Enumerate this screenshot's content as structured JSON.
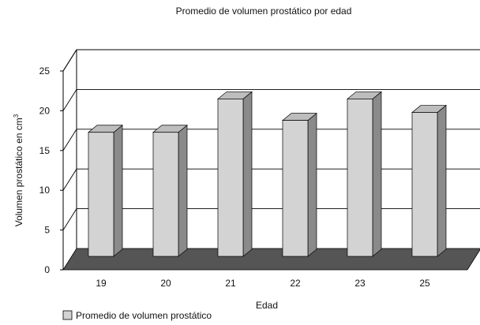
{
  "chart_data": {
    "type": "bar",
    "title": "Promedio de volumen prostático por edad",
    "xlabel": "Edad",
    "ylabel": "Volumen prostático en cm",
    "ylabel_superscript": "3",
    "categories": [
      "19",
      "20",
      "21",
      "22",
      "23",
      "25"
    ],
    "series": [
      {
        "name": "Promedio de volumen prostático",
        "values": [
          15.6,
          15.6,
          19.8,
          17.1,
          19.8,
          18.1
        ]
      }
    ],
    "ylim": [
      0,
      25
    ],
    "yticks": [
      "0",
      "5",
      "10",
      "15",
      "20",
      "25"
    ],
    "grid": true,
    "three_d": true,
    "legend_position": "bottom-left",
    "colors": {
      "bar_front": "#d3d3d3",
      "bar_side": "#8a8a8a",
      "bar_top": "#bdbdbd",
      "floor": "#555555",
      "gridline": "#000000"
    }
  }
}
